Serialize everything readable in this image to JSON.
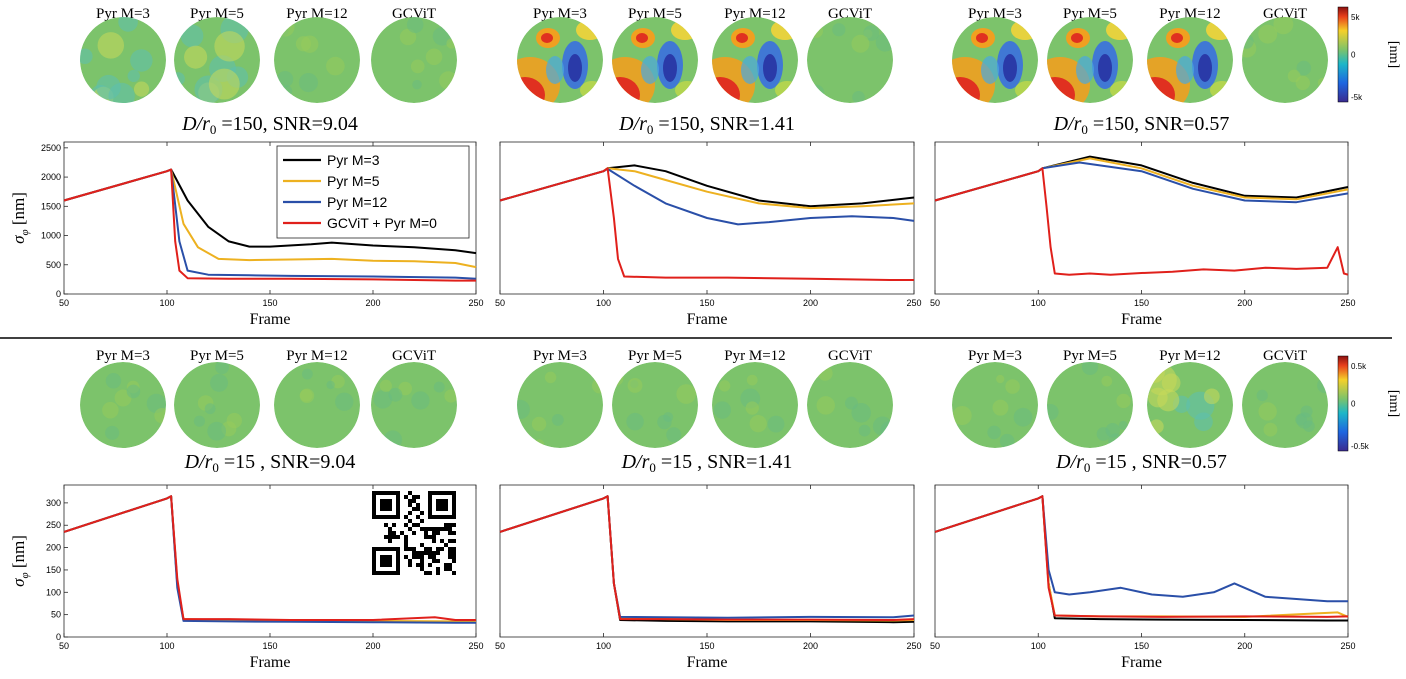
{
  "colors": {
    "pyr_m3": "#000000",
    "pyr_m5": "#EDB120",
    "pyr_m12": "#2A4FA8",
    "gcvit": "#E0201B",
    "pupil_base": "#7CC36B"
  },
  "colorbars": [
    {
      "tick_top": "5k",
      "tick_mid": "0",
      "tick_bottom": "-5k",
      "unit": "[nm]"
    },
    {
      "tick_top": "0.5k",
      "tick_mid": "0",
      "tick_bottom": "-0.5k",
      "unit": "[nm]"
    }
  ],
  "legend": {
    "entries": [
      "Pyr M=3",
      "Pyr M=5",
      "Pyr M=12",
      "GCViT + Pyr M=0"
    ],
    "placement": "top-right of first panel"
  },
  "panels": [
    {
      "image_labels": [
        "Pyr M=3",
        "Pyr M=5",
        "Pyr M=12",
        "GCViT"
      ],
      "condition": "=150, SNR=9.04",
      "pupils": [
        "mild",
        "mild",
        "flat",
        "flat"
      ]
    },
    {
      "image_labels": [
        "Pyr M=3",
        "Pyr M=5",
        "Pyr M=12",
        "GCViT"
      ],
      "condition": "=150, SNR=1.41",
      "pupils": [
        "strong",
        "strong",
        "strong",
        "flat"
      ]
    },
    {
      "image_labels": [
        "Pyr M=3",
        "Pyr M=5",
        "Pyr M=12",
        "GCViT"
      ],
      "condition": "=150, SNR=0.57",
      "pupils": [
        "strong",
        "strong",
        "strong",
        "flat"
      ]
    },
    {
      "image_labels": [
        "Pyr M=3",
        "Pyr M=5",
        "Pyr M=12",
        "GCViT"
      ],
      "condition": "=15  , SNR=9.04",
      "pupils": [
        "flat",
        "flat",
        "flat",
        "flat"
      ]
    },
    {
      "image_labels": [
        "Pyr M=3",
        "Pyr M=5",
        "Pyr M=12",
        "GCViT"
      ],
      "condition": "=15  , SNR=1.41",
      "pupils": [
        "flat",
        "flat",
        "flat",
        "flat"
      ]
    },
    {
      "image_labels": [
        "Pyr M=3",
        "Pyr M=5",
        "Pyr M=12",
        "GCViT"
      ],
      "condition": "=15  , SNR=0.57",
      "pupils": [
        "flat",
        "flat",
        "mild",
        "flat"
      ]
    }
  ],
  "chart_data": [
    {
      "type": "line",
      "xlabel": "Frame",
      "ylabel": "σ_φ [nm]",
      "xlim": [
        50,
        250
      ],
      "ylim": [
        0,
        2600
      ],
      "xticks": [
        50,
        100,
        150,
        200,
        250
      ],
      "yticks": [
        0,
        500,
        1000,
        1500,
        2000,
        2500
      ],
      "series": [
        {
          "name": "Pyr M=3",
          "x": [
            50,
            100,
            102,
            110,
            120,
            130,
            140,
            150,
            170,
            180,
            200,
            220,
            240,
            250
          ],
          "y": [
            1600,
            2100,
            2130,
            1600,
            1150,
            900,
            810,
            810,
            850,
            880,
            830,
            800,
            750,
            700
          ]
        },
        {
          "name": "Pyr M=5",
          "x": [
            50,
            100,
            102,
            108,
            115,
            125,
            140,
            160,
            180,
            200,
            220,
            240,
            250
          ],
          "y": [
            1600,
            2100,
            2130,
            1200,
            800,
            600,
            580,
            590,
            600,
            570,
            560,
            530,
            460
          ]
        },
        {
          "name": "Pyr M=12",
          "x": [
            50,
            100,
            102,
            106,
            110,
            120,
            140,
            160,
            200,
            240,
            250
          ],
          "y": [
            1600,
            2100,
            2130,
            900,
            400,
            330,
            320,
            310,
            300,
            280,
            260
          ]
        },
        {
          "name": "GCViT + Pyr M=0",
          "x": [
            50,
            100,
            102,
            104,
            106,
            110,
            130,
            160,
            200,
            240,
            250
          ],
          "y": [
            1600,
            2100,
            2130,
            900,
            400,
            270,
            260,
            260,
            250,
            230,
            230
          ]
        }
      ]
    },
    {
      "type": "line",
      "xlabel": "Frame",
      "xlim": [
        50,
        250
      ],
      "ylim": [
        0,
        2600
      ],
      "xticks": [
        50,
        100,
        150,
        200,
        250
      ],
      "series": [
        {
          "name": "Pyr M=3",
          "x": [
            50,
            100,
            102,
            115,
            130,
            150,
            175,
            200,
            225,
            250
          ],
          "y": [
            1600,
            2100,
            2150,
            2200,
            2100,
            1850,
            1600,
            1500,
            1550,
            1650
          ]
        },
        {
          "name": "Pyr M=5",
          "x": [
            50,
            100,
            102,
            115,
            130,
            150,
            175,
            200,
            225,
            250
          ],
          "y": [
            1600,
            2100,
            2150,
            2100,
            1950,
            1750,
            1550,
            1470,
            1500,
            1550
          ]
        },
        {
          "name": "Pyr M=12",
          "x": [
            50,
            100,
            102,
            115,
            130,
            150,
            165,
            180,
            200,
            220,
            240,
            250
          ],
          "y": [
            1600,
            2100,
            2140,
            1850,
            1550,
            1300,
            1190,
            1230,
            1300,
            1330,
            1300,
            1250
          ]
        },
        {
          "name": "GCViT + Pyr M=0",
          "x": [
            50,
            100,
            102,
            105,
            107,
            110,
            130,
            160,
            200,
            240,
            250
          ],
          "y": [
            1600,
            2100,
            2150,
            1300,
            600,
            300,
            280,
            280,
            260,
            240,
            240
          ]
        }
      ]
    },
    {
      "type": "line",
      "xlabel": "Frame",
      "xlim": [
        50,
        250
      ],
      "ylim": [
        0,
        2600
      ],
      "xticks": [
        50,
        100,
        150,
        200,
        250
      ],
      "series": [
        {
          "name": "Pyr M=3",
          "x": [
            50,
            100,
            102,
            125,
            150,
            175,
            200,
            225,
            250
          ],
          "y": [
            1600,
            2100,
            2150,
            2350,
            2200,
            1900,
            1680,
            1650,
            1830
          ]
        },
        {
          "name": "Pyr M=5",
          "x": [
            50,
            100,
            102,
            125,
            150,
            175,
            200,
            225,
            250
          ],
          "y": [
            1600,
            2100,
            2150,
            2320,
            2150,
            1850,
            1650,
            1620,
            1790
          ]
        },
        {
          "name": "Pyr M=12",
          "x": [
            50,
            100,
            102,
            120,
            150,
            175,
            200,
            225,
            250
          ],
          "y": [
            1600,
            2100,
            2150,
            2250,
            2100,
            1800,
            1600,
            1570,
            1720
          ]
        },
        {
          "name": "GCViT + Pyr M=0",
          "x": [
            50,
            100,
            102,
            104,
            106,
            108,
            115,
            125,
            135,
            150,
            165,
            180,
            195,
            210,
            225,
            240,
            245,
            248,
            250
          ],
          "y": [
            1600,
            2100,
            2150,
            1500,
            800,
            350,
            330,
            350,
            330,
            360,
            380,
            420,
            400,
            450,
            430,
            450,
            800,
            350,
            330
          ]
        }
      ]
    },
    {
      "type": "line",
      "xlabel": "Frame",
      "ylabel": "σ_φ [nm]",
      "xlim": [
        50,
        250
      ],
      "ylim": [
        0,
        340
      ],
      "xticks": [
        50,
        100,
        150,
        200,
        250
      ],
      "yticks": [
        0,
        50,
        100,
        150,
        200,
        250,
        300
      ],
      "series": [
        {
          "name": "Pyr M=3",
          "x": [
            50,
            100,
            102,
            105,
            108,
            130,
            160,
            200,
            240,
            250
          ],
          "y": [
            235,
            310,
            315,
            120,
            38,
            36,
            36,
            35,
            33,
            33
          ]
        },
        {
          "name": "Pyr M=5",
          "x": [
            50,
            100,
            102,
            105,
            108,
            130,
            160,
            200,
            240,
            250
          ],
          "y": [
            235,
            310,
            315,
            120,
            40,
            38,
            37,
            36,
            35,
            35
          ]
        },
        {
          "name": "Pyr M=12",
          "x": [
            50,
            100,
            102,
            105,
            108,
            130,
            160,
            200,
            240,
            250
          ],
          "y": [
            235,
            310,
            315,
            110,
            36,
            35,
            34,
            33,
            32,
            32
          ]
        },
        {
          "name": "GCViT + Pyr M=0",
          "x": [
            50,
            100,
            102,
            105,
            108,
            130,
            160,
            200,
            230,
            240,
            250
          ],
          "y": [
            235,
            310,
            315,
            130,
            40,
            40,
            38,
            38,
            44,
            38,
            38
          ]
        }
      ]
    },
    {
      "type": "line",
      "xlabel": "Frame",
      "xlim": [
        50,
        250
      ],
      "ylim": [
        0,
        340
      ],
      "xticks": [
        50,
        100,
        150,
        200,
        250
      ],
      "series": [
        {
          "name": "Pyr M=3",
          "x": [
            50,
            100,
            102,
            105,
            108,
            130,
            160,
            200,
            240,
            250
          ],
          "y": [
            235,
            310,
            315,
            120,
            38,
            36,
            35,
            35,
            33,
            34
          ]
        },
        {
          "name": "Pyr M=5",
          "x": [
            50,
            100,
            102,
            105,
            108,
            130,
            160,
            200,
            240,
            250
          ],
          "y": [
            235,
            310,
            315,
            120,
            42,
            40,
            38,
            38,
            37,
            38
          ]
        },
        {
          "name": "Pyr M=12",
          "x": [
            50,
            100,
            102,
            105,
            108,
            130,
            160,
            200,
            240,
            250
          ],
          "y": [
            235,
            310,
            315,
            120,
            45,
            44,
            43,
            45,
            44,
            48
          ]
        },
        {
          "name": "GCViT + Pyr M=0",
          "x": [
            50,
            100,
            102,
            105,
            108,
            130,
            160,
            200,
            240,
            250
          ],
          "y": [
            235,
            310,
            315,
            120,
            40,
            40,
            39,
            39,
            38,
            40
          ]
        }
      ]
    },
    {
      "type": "line",
      "xlabel": "Frame",
      "xlim": [
        50,
        250
      ],
      "ylim": [
        0,
        340
      ],
      "xticks": [
        50,
        100,
        150,
        200,
        250
      ],
      "series": [
        {
          "name": "Pyr M=3",
          "x": [
            50,
            100,
            102,
            105,
            108,
            130,
            160,
            200,
            240,
            250
          ],
          "y": [
            235,
            310,
            315,
            120,
            42,
            40,
            39,
            38,
            37,
            37
          ]
        },
        {
          "name": "Pyr M=5",
          "x": [
            50,
            100,
            102,
            105,
            108,
            130,
            160,
            200,
            245,
            250
          ],
          "y": [
            235,
            310,
            315,
            120,
            48,
            46,
            46,
            45,
            55,
            45
          ]
        },
        {
          "name": "Pyr M=12",
          "x": [
            50,
            100,
            102,
            105,
            108,
            115,
            125,
            140,
            155,
            170,
            185,
            195,
            210,
            225,
            240,
            250
          ],
          "y": [
            235,
            310,
            315,
            150,
            100,
            95,
            100,
            110,
            95,
            90,
            100,
            120,
            90,
            85,
            80,
            80
          ]
        },
        {
          "name": "GCViT + Pyr M=0",
          "x": [
            50,
            100,
            102,
            105,
            108,
            130,
            160,
            200,
            240,
            250
          ],
          "y": [
            235,
            310,
            315,
            110,
            48,
            46,
            45,
            46,
            45,
            46
          ]
        }
      ]
    }
  ]
}
